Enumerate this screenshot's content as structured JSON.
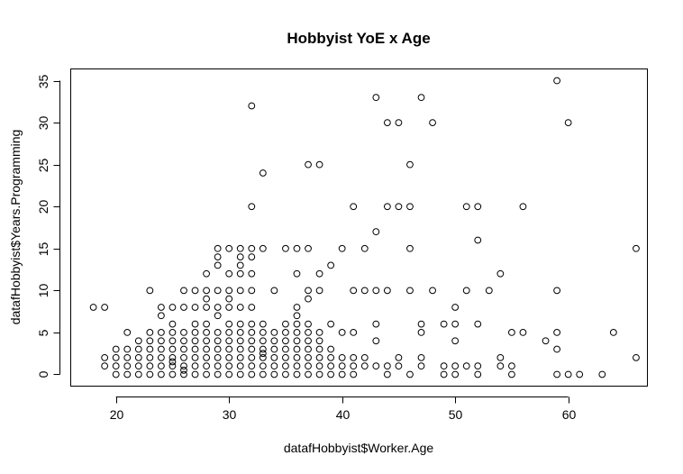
{
  "chart_data": {
    "type": "scatter",
    "title": "Hobbyist YoE x Age",
    "xlabel": "datafHobbyist$Worker.Age",
    "ylabel": "datafHobbyist$Years.Programming",
    "xlim": [
      16,
      67
    ],
    "ylim": [
      -1.4,
      36.4
    ],
    "xticks": [
      20,
      30,
      40,
      50,
      60
    ],
    "yticks": [
      0,
      5,
      10,
      15,
      20,
      25,
      30,
      35
    ],
    "grid": false,
    "legend": "none",
    "marker": "open-circle",
    "points": [
      [
        18,
        8
      ],
      [
        19,
        8
      ],
      [
        19,
        2
      ],
      [
        19,
        1
      ],
      [
        20,
        3
      ],
      [
        20,
        2
      ],
      [
        20,
        1
      ],
      [
        20,
        0
      ],
      [
        21,
        5
      ],
      [
        21,
        3
      ],
      [
        21,
        2
      ],
      [
        21,
        1
      ],
      [
        21,
        0
      ],
      [
        22,
        4
      ],
      [
        22,
        3
      ],
      [
        22,
        2
      ],
      [
        22,
        1
      ],
      [
        22,
        0
      ],
      [
        23,
        10
      ],
      [
        23,
        5
      ],
      [
        23,
        4
      ],
      [
        23,
        3
      ],
      [
        23,
        2
      ],
      [
        23,
        1
      ],
      [
        23,
        0
      ],
      [
        24,
        8
      ],
      [
        24,
        7
      ],
      [
        24,
        5
      ],
      [
        24,
        4
      ],
      [
        24,
        3
      ],
      [
        24,
        2
      ],
      [
        24,
        1
      ],
      [
        24,
        0
      ],
      [
        25,
        8
      ],
      [
        25,
        6
      ],
      [
        25,
        5
      ],
      [
        25,
        4
      ],
      [
        25,
        3
      ],
      [
        25,
        2
      ],
      [
        25,
        1.5
      ],
      [
        25,
        1
      ],
      [
        25,
        0
      ],
      [
        26,
        10
      ],
      [
        26,
        8
      ],
      [
        26,
        5
      ],
      [
        26,
        4
      ],
      [
        26,
        3
      ],
      [
        26,
        2
      ],
      [
        26,
        1
      ],
      [
        26,
        0.5
      ],
      [
        26,
        0
      ],
      [
        27,
        10
      ],
      [
        27,
        8
      ],
      [
        27,
        6
      ],
      [
        27,
        5
      ],
      [
        27,
        4
      ],
      [
        27,
        3
      ],
      [
        27,
        2
      ],
      [
        27,
        1
      ],
      [
        27,
        0
      ],
      [
        28,
        12
      ],
      [
        28,
        10
      ],
      [
        28,
        9
      ],
      [
        28,
        8
      ],
      [
        28,
        6
      ],
      [
        28,
        5
      ],
      [
        28,
        4
      ],
      [
        28,
        3
      ],
      [
        28,
        2
      ],
      [
        28,
        1
      ],
      [
        28,
        0
      ],
      [
        29,
        15
      ],
      [
        29,
        14
      ],
      [
        29,
        13
      ],
      [
        29,
        10
      ],
      [
        29,
        8
      ],
      [
        29,
        7
      ],
      [
        29,
        5
      ],
      [
        29,
        4
      ],
      [
        29,
        3
      ],
      [
        29,
        2
      ],
      [
        29,
        1
      ],
      [
        29,
        0
      ],
      [
        30,
        15
      ],
      [
        30,
        12
      ],
      [
        30,
        10
      ],
      [
        30,
        9
      ],
      [
        30,
        8
      ],
      [
        30,
        6
      ],
      [
        30,
        5
      ],
      [
        30,
        4
      ],
      [
        30,
        3
      ],
      [
        30,
        2
      ],
      [
        30,
        1
      ],
      [
        30,
        0
      ],
      [
        31,
        15
      ],
      [
        31,
        14
      ],
      [
        31,
        13
      ],
      [
        31,
        12
      ],
      [
        31,
        10
      ],
      [
        31,
        8
      ],
      [
        31,
        6
      ],
      [
        31,
        5
      ],
      [
        31,
        4
      ],
      [
        31,
        3
      ],
      [
        31,
        2
      ],
      [
        31,
        1
      ],
      [
        31,
        0
      ],
      [
        32,
        32
      ],
      [
        32,
        20
      ],
      [
        32,
        15
      ],
      [
        32,
        14
      ],
      [
        32,
        12
      ],
      [
        32,
        10
      ],
      [
        32,
        8
      ],
      [
        32,
        6
      ],
      [
        32,
        5
      ],
      [
        32,
        4
      ],
      [
        32,
        3
      ],
      [
        32,
        2
      ],
      [
        32,
        1
      ],
      [
        32,
        0
      ],
      [
        33,
        24
      ],
      [
        33,
        15
      ],
      [
        33,
        6
      ],
      [
        33,
        5
      ],
      [
        33,
        4
      ],
      [
        33,
        3
      ],
      [
        33,
        2.5
      ],
      [
        33,
        2
      ],
      [
        33,
        1
      ],
      [
        33,
        0
      ],
      [
        34,
        10
      ],
      [
        34,
        5
      ],
      [
        34,
        4
      ],
      [
        34,
        3
      ],
      [
        34,
        2
      ],
      [
        34,
        1
      ],
      [
        34,
        0
      ],
      [
        35,
        15
      ],
      [
        35,
        6
      ],
      [
        35,
        5
      ],
      [
        35,
        4
      ],
      [
        35,
        3
      ],
      [
        35,
        2
      ],
      [
        35,
        1
      ],
      [
        35,
        0
      ],
      [
        36,
        15
      ],
      [
        36,
        12
      ],
      [
        36,
        8
      ],
      [
        36,
        7
      ],
      [
        36,
        6
      ],
      [
        36,
        5
      ],
      [
        36,
        4
      ],
      [
        36,
        3
      ],
      [
        36,
        2
      ],
      [
        36,
        1
      ],
      [
        36,
        0
      ],
      [
        37,
        25
      ],
      [
        37,
        15
      ],
      [
        37,
        10
      ],
      [
        37,
        9
      ],
      [
        37,
        6
      ],
      [
        37,
        5
      ],
      [
        37,
        4
      ],
      [
        37,
        3
      ],
      [
        37,
        2
      ],
      [
        37,
        1
      ],
      [
        37,
        0
      ],
      [
        38,
        25
      ],
      [
        38,
        12
      ],
      [
        38,
        10
      ],
      [
        38,
        5
      ],
      [
        38,
        4
      ],
      [
        38,
        3
      ],
      [
        38,
        2
      ],
      [
        38,
        1
      ],
      [
        38,
        0
      ],
      [
        39,
        13
      ],
      [
        39,
        6
      ],
      [
        39,
        3
      ],
      [
        39,
        2
      ],
      [
        39,
        1
      ],
      [
        39,
        0
      ],
      [
        40,
        15
      ],
      [
        40,
        5
      ],
      [
        40,
        2
      ],
      [
        40,
        1
      ],
      [
        40,
        0
      ],
      [
        41,
        20
      ],
      [
        41,
        10
      ],
      [
        41,
        5
      ],
      [
        41,
        2
      ],
      [
        41,
        1
      ],
      [
        41,
        0
      ],
      [
        42,
        15
      ],
      [
        42,
        10
      ],
      [
        42,
        2
      ],
      [
        42,
        1
      ],
      [
        43,
        33
      ],
      [
        43,
        17
      ],
      [
        43,
        10
      ],
      [
        43,
        6
      ],
      [
        43,
        4
      ],
      [
        43,
        1
      ],
      [
        44,
        30
      ],
      [
        44,
        20
      ],
      [
        44,
        10
      ],
      [
        44,
        1
      ],
      [
        44,
        0
      ],
      [
        45,
        30
      ],
      [
        45,
        20
      ],
      [
        45,
        2
      ],
      [
        45,
        1
      ],
      [
        46,
        25
      ],
      [
        46,
        20
      ],
      [
        46,
        15
      ],
      [
        46,
        10
      ],
      [
        46,
        0
      ],
      [
        47,
        33
      ],
      [
        47,
        6
      ],
      [
        47,
        5
      ],
      [
        47,
        2
      ],
      [
        47,
        1
      ],
      [
        48,
        30
      ],
      [
        48,
        10
      ],
      [
        49,
        6
      ],
      [
        49,
        1
      ],
      [
        49,
        0
      ],
      [
        50,
        8
      ],
      [
        50,
        6
      ],
      [
        50,
        4
      ],
      [
        50,
        1
      ],
      [
        50,
        0
      ],
      [
        51,
        20
      ],
      [
        51,
        10
      ],
      [
        51,
        1
      ],
      [
        52,
        20
      ],
      [
        52,
        16
      ],
      [
        52,
        6
      ],
      [
        52,
        1
      ],
      [
        52,
        0
      ],
      [
        53,
        10
      ],
      [
        54,
        12
      ],
      [
        54,
        2
      ],
      [
        54,
        1
      ],
      [
        55,
        5
      ],
      [
        55,
        1
      ],
      [
        55,
        0
      ],
      [
        56,
        20
      ],
      [
        56,
        5
      ],
      [
        58,
        4
      ],
      [
        59,
        35
      ],
      [
        59,
        10
      ],
      [
        59,
        5
      ],
      [
        59,
        3
      ],
      [
        59,
        0
      ],
      [
        60,
        30
      ],
      [
        60,
        0
      ],
      [
        61,
        0
      ],
      [
        63,
        0
      ],
      [
        64,
        5
      ],
      [
        66,
        15
      ],
      [
        66,
        2
      ]
    ]
  }
}
